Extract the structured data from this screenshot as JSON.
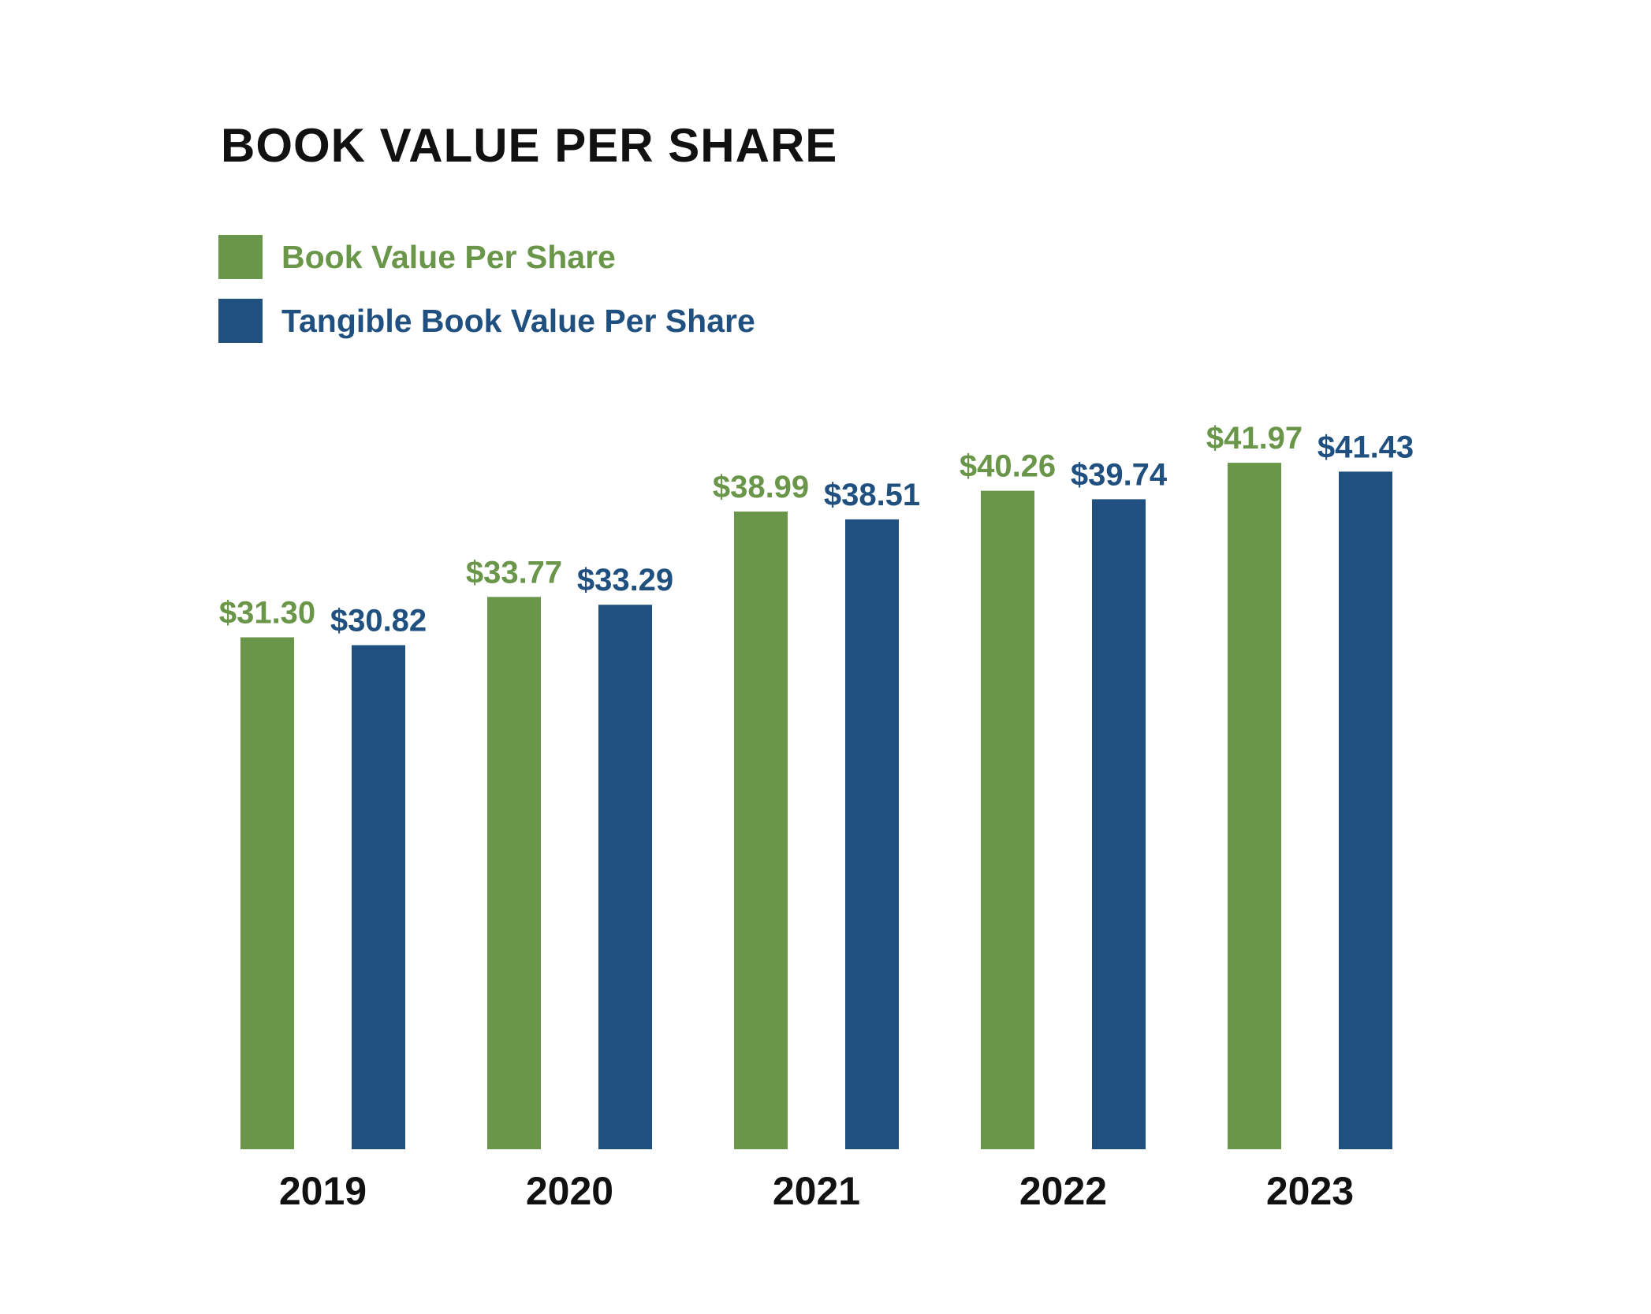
{
  "chart_data": {
    "type": "bar",
    "title": "BOOK VALUE PER SHARE",
    "categories": [
      "2019",
      "2020",
      "2021",
      "2022",
      "2023"
    ],
    "series": [
      {
        "name": "Book Value Per Share",
        "color": "#6a964a",
        "values": [
          31.3,
          33.77,
          38.99,
          40.26,
          41.97
        ],
        "labels": [
          "$31.30",
          "$33.77",
          "$38.99",
          "$40.26",
          "$41.97"
        ]
      },
      {
        "name": "Tangible Book Value Per Share",
        "color": "#1f5080",
        "values": [
          30.82,
          33.29,
          38.51,
          39.74,
          41.43
        ],
        "labels": [
          "$30.82",
          "$33.29",
          "$38.51",
          "$39.74",
          "$41.43"
        ]
      }
    ],
    "xlabel": "",
    "ylabel": "",
    "ylim": [
      0,
      42
    ],
    "grid": false,
    "legend_position": "top-left"
  }
}
